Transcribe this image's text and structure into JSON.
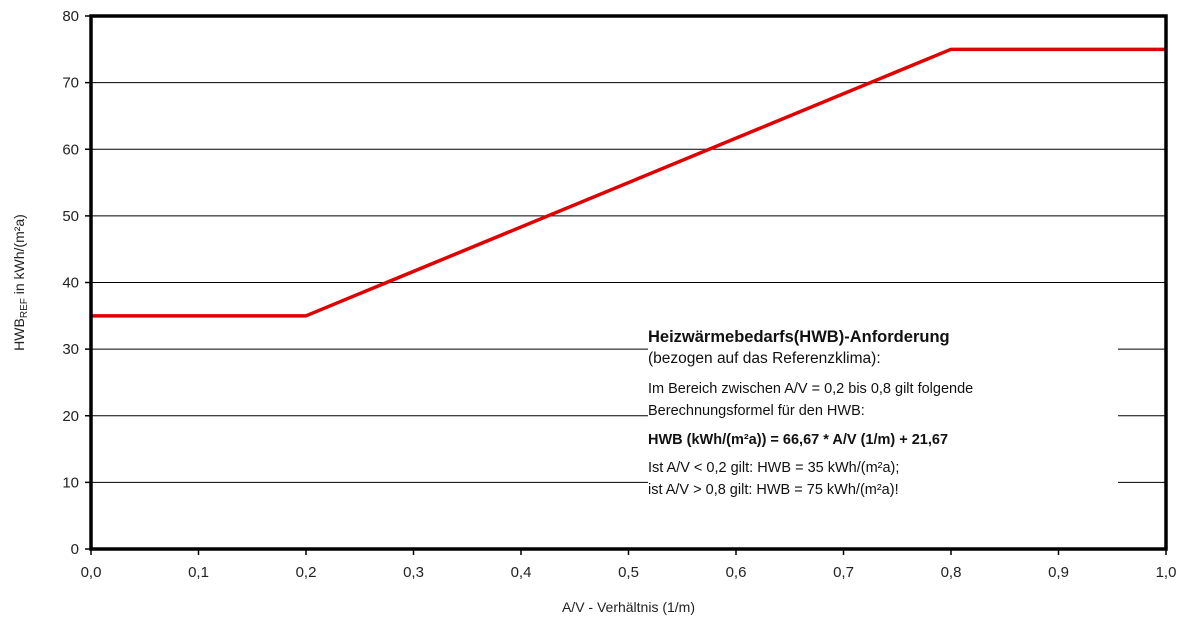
{
  "chart_data": {
    "type": "line",
    "title": "",
    "xlabel": "A/V - Verhältnis (1/m)",
    "ylabel_main": "HWB",
    "ylabel_sub": "REF",
    "ylabel_rest": " in kWh/(m²a)",
    "xlim": [
      0,
      1
    ],
    "ylim": [
      0,
      80
    ],
    "x_ticks": [
      "0,0",
      "0,1",
      "0,2",
      "0,3",
      "0,4",
      "0,5",
      "0,6",
      "0,7",
      "0,8",
      "0,9",
      "1,0"
    ],
    "y_ticks": [
      "0",
      "10",
      "20",
      "30",
      "40",
      "50",
      "60",
      "70",
      "80"
    ],
    "grid": "horizontal",
    "legend": "none",
    "series": [
      {
        "color": "#e00000",
        "x": [
          0.0,
          0.2,
          0.8,
          1.0
        ],
        "y": [
          35,
          35,
          75,
          75
        ]
      }
    ]
  },
  "annotation": {
    "title": "Heizwärmebedarfs(HWB)-Anforderung",
    "subtitle": "(bezogen auf das Referenzklima):",
    "line1": "Im Bereich zwischen A/V = 0,2 bis 0,8 gilt folgende",
    "line2": "Berechnungsformel für den HWB:",
    "formula": "HWB (kWh/(m²a)) = 66,67 * A/V (1/m) + 21,67",
    "rule1": "Ist A/V < 0,2 gilt: HWB = 35 kWh/(m²a);",
    "rule2": "ist A/V > 0,8 gilt: HWB = 75 kWh/(m²a)!"
  }
}
